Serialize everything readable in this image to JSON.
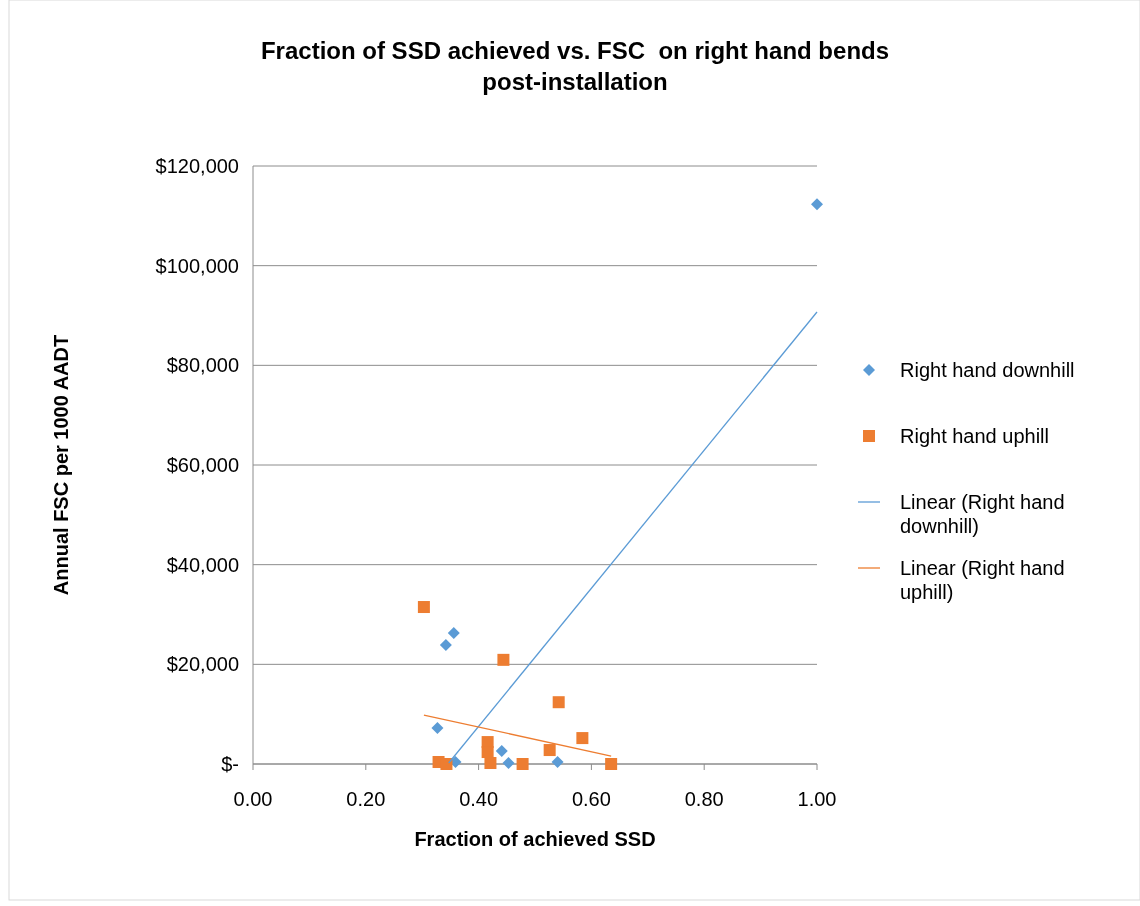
{
  "chart_data": {
    "type": "scatter",
    "title": "Fraction of SSD achieved vs. FSC  on right hand bends post-installation",
    "xlabel": "Fraction of achieved SSD",
    "ylabel": "Annual FSC per 1000 AADT",
    "xlim": [
      0,
      1
    ],
    "xticks": [
      {
        "value": 0,
        "label": "0.00"
      },
      {
        "value": 0.2,
        "label": "0.20"
      },
      {
        "value": 0.4,
        "label": "0.40"
      },
      {
        "value": 0.6,
        "label": "0.60"
      },
      {
        "value": 0.8,
        "label": "0.80"
      },
      {
        "value": 1,
        "label": "1.00"
      }
    ],
    "ylim": [
      0,
      120000
    ],
    "yticks": [
      {
        "value": 0,
        "label": "$-"
      },
      {
        "value": 20000,
        "label": "$20,000"
      },
      {
        "value": 40000,
        "label": "$40,000"
      },
      {
        "value": 60000,
        "label": "$60,000"
      },
      {
        "value": 80000,
        "label": "$80,000"
      },
      {
        "value": 100000,
        "label": "$100,000"
      },
      {
        "value": 120000,
        "label": "$120,000"
      }
    ],
    "grid": "y",
    "legend": "right",
    "series": [
      {
        "name": "Right hand downhill",
        "marker": "diamond",
        "color": "#5b9bd5",
        "x": [
          0.356,
          0.342,
          0.327,
          0.359,
          0.441,
          0.453,
          0.54,
          1.0
        ],
        "values": [
          26300,
          23900,
          7200,
          400,
          2600,
          200,
          400,
          112300
        ]
      },
      {
        "name": "Right hand uphill",
        "marker": "square",
        "color": "#ed7d31",
        "x": [
          0.303,
          0.444,
          0.542,
          0.584,
          0.526,
          0.416,
          0.416,
          0.421,
          0.329,
          0.343,
          0.478,
          0.635
        ],
        "values": [
          31500,
          20900,
          12400,
          5200,
          2800,
          4400,
          2400,
          200,
          400,
          0,
          0,
          0
        ]
      },
      {
        "name": "Linear (Right hand downhill)",
        "type": "line",
        "marker": "none",
        "color": "#5b9bd5",
        "x": [
          0.347,
          1.0
        ],
        "values": [
          200,
          90700
        ]
      },
      {
        "name": "Linear (Right hand uphill)",
        "type": "line",
        "marker": "none",
        "color": "#ed7d31",
        "x": [
          0.303,
          0.635
        ],
        "values": [
          9800,
          1600
        ]
      }
    ]
  }
}
